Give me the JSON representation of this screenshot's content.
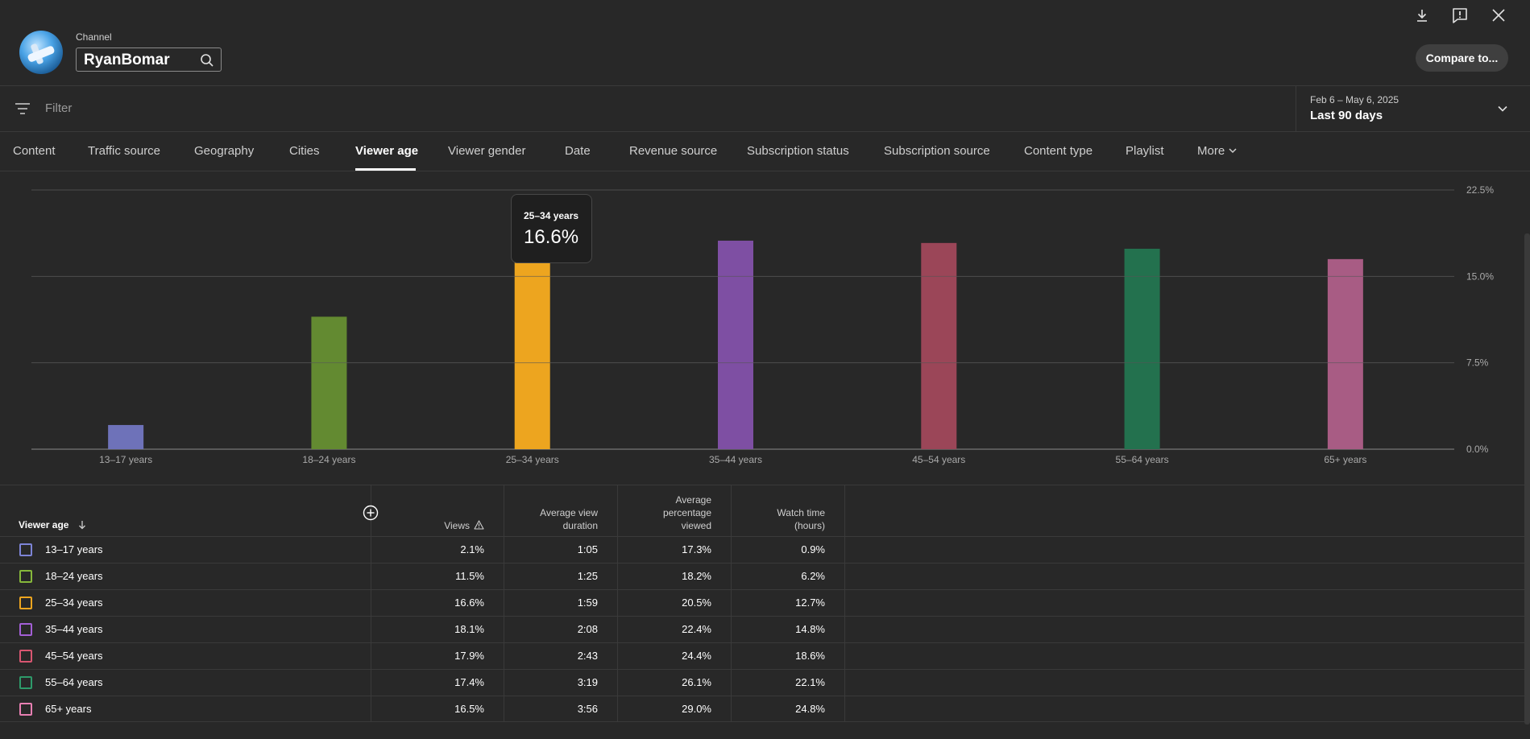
{
  "header": {
    "channel_label": "Channel",
    "channel_name": "RyanBomar",
    "compare_button": "Compare to..."
  },
  "filter": {
    "placeholder": "Filter",
    "date_range": "Feb 6 – May 6, 2025",
    "date_label": "Last 90 days"
  },
  "tabs": [
    {
      "label": "Content"
    },
    {
      "label": "Traffic source"
    },
    {
      "label": "Geography"
    },
    {
      "label": "Cities"
    },
    {
      "label": "Viewer age",
      "active": true
    },
    {
      "label": "Viewer gender"
    },
    {
      "label": "Date"
    },
    {
      "label": "Revenue source"
    },
    {
      "label": "Subscription status"
    },
    {
      "label": "Subscription source"
    },
    {
      "label": "Content type"
    },
    {
      "label": "Playlist"
    },
    {
      "label": "More"
    }
  ],
  "tooltip": {
    "category": "25–34 years",
    "value": "16.6%"
  },
  "chart_data": {
    "type": "bar",
    "categories": [
      "13–17 years",
      "18–24 years",
      "25–34 years",
      "35–44 years",
      "45–54 years",
      "55–64 years",
      "65+ years"
    ],
    "values": [
      2.1,
      11.5,
      16.6,
      18.1,
      17.9,
      17.4,
      16.5
    ],
    "colors": [
      "#6e72b9",
      "#638a31",
      "#eda51f",
      "#7e4fa3",
      "#9b4658",
      "#23714e",
      "#a85c84"
    ],
    "y_ticks": [
      "0.0%",
      "7.5%",
      "15.0%",
      "22.5%"
    ],
    "y_tick_values": [
      0,
      7.5,
      15,
      22.5
    ],
    "ylim": [
      0,
      22.5
    ],
    "grid": true,
    "y_axis_side": "right"
  },
  "table": {
    "headers": {
      "dimension": "Viewer age",
      "views": "Views",
      "avg_view_duration": [
        "Average view",
        "duration"
      ],
      "avg_pct_viewed": [
        "Average",
        "percentage",
        "viewed"
      ],
      "watch_time": [
        "Watch time",
        "(hours)"
      ]
    },
    "rows": [
      {
        "label": "13–17 years",
        "color": "#7d84d6",
        "views": "2.1%",
        "duration": "1:05",
        "pct": "17.3%",
        "watch": "0.9%"
      },
      {
        "label": "18–24 years",
        "color": "#86b83b",
        "views": "11.5%",
        "duration": "1:25",
        "pct": "18.2%",
        "watch": "6.2%"
      },
      {
        "label": "25–34 years",
        "color": "#eda51f",
        "views": "16.6%",
        "duration": "1:59",
        "pct": "20.5%",
        "watch": "12.7%"
      },
      {
        "label": "35–44 years",
        "color": "#a35fd6",
        "views": "18.1%",
        "duration": "2:08",
        "pct": "22.4%",
        "watch": "14.8%"
      },
      {
        "label": "45–54 years",
        "color": "#d85671",
        "views": "17.9%",
        "duration": "2:43",
        "pct": "24.4%",
        "watch": "18.6%"
      },
      {
        "label": "55–64 years",
        "color": "#2e9a6a",
        "views": "17.4%",
        "duration": "3:19",
        "pct": "26.1%",
        "watch": "22.1%"
      },
      {
        "label": "65+ years",
        "color": "#e77fb2",
        "views": "16.5%",
        "duration": "3:56",
        "pct": "29.0%",
        "watch": "24.8%"
      }
    ]
  }
}
